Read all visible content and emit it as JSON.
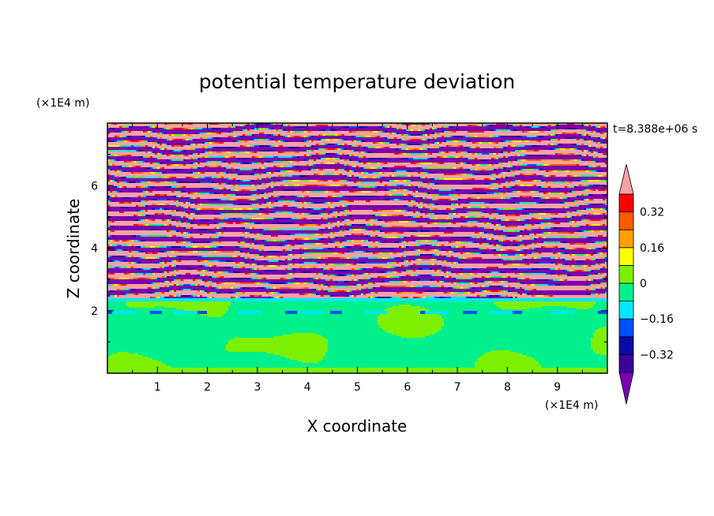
{
  "chart_data": {
    "type": "heatmap",
    "title": "potential temperature deviation",
    "xlabel": "X coordinate",
    "ylabel": "Z coordinate",
    "x_unit": "(×1E4 m)",
    "y_unit": "(×1E4 m)",
    "time_label": "t=8.388e+06 s",
    "xlim": [
      0,
      10
    ],
    "ylim": [
      0,
      8
    ],
    "x_ticks": [
      "1",
      "2",
      "3",
      "4",
      "5",
      "6",
      "7",
      "8",
      "9"
    ],
    "y_ticks": [
      "2",
      "4",
      "6"
    ],
    "colorbar": {
      "levels": [
        -0.48,
        -0.4,
        -0.32,
        -0.24,
        -0.16,
        -0.08,
        0,
        0.08,
        0.16,
        0.24,
        0.32,
        0.4,
        0.48
      ],
      "labels": [
        "0.32",
        "0.16",
        "0",
        "−0.16",
        "−0.32"
      ],
      "colors": [
        "#7a00b0",
        "#3d0099",
        "#0a0aa8",
        "#0050ff",
        "#00e6ff",
        "#00f08c",
        "#7cf000",
        "#ffff00",
        "#ffa000",
        "#ff5a00",
        "#ff0000",
        "#f5a3a3"
      ]
    },
    "field_description": [
      {
        "z_range": [
          0,
          2.4
        ],
        "pattern": "mostly green (0 to 0.08) with yellow-green (0.08 to 0.16) blobs"
      },
      {
        "z_range": [
          2.4,
          8
        ],
        "pattern": "alternating horizontal layers of purple (below -0.40) and pink (above 0.40) with thin multicolor transition bands"
      }
    ]
  }
}
